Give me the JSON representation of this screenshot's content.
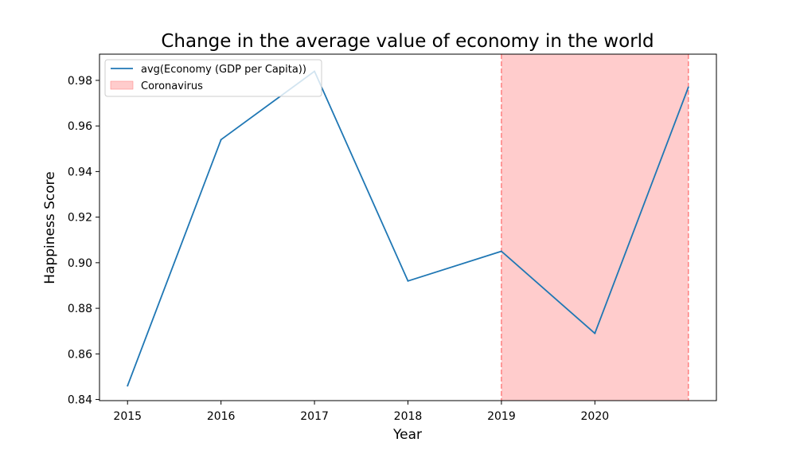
{
  "chart_data": {
    "type": "line",
    "title": "Change in the average value of economy in the world",
    "xlabel": "Year",
    "ylabel": "Happiness Score",
    "x": [
      2015,
      2016,
      2017,
      2018,
      2019,
      2020,
      2021
    ],
    "x_tick_labels": [
      "2015",
      "2016",
      "2017",
      "2018",
      "2019",
      "2020"
    ],
    "y_ticks": [
      0.84,
      0.86,
      0.88,
      0.9,
      0.92,
      0.94,
      0.96,
      0.98
    ],
    "y_tick_labels": [
      "0.84",
      "0.86",
      "0.88",
      "0.90",
      "0.92",
      "0.94",
      "0.96",
      "0.98"
    ],
    "xlim": [
      2014.7,
      2021.3
    ],
    "ylim": [
      0.8395,
      0.9915
    ],
    "grid": false,
    "legend_position": "top-left",
    "series": [
      {
        "name": "avg(Economy (GDP per Capita))",
        "color": "#1f77b4",
        "values": [
          0.846,
          0.954,
          0.984,
          0.892,
          0.905,
          0.869,
          0.977
        ]
      }
    ],
    "shaded_region": {
      "label": "Coronavirus",
      "x_start": 2019,
      "x_end": 2021,
      "fill_color": "#ffcccc",
      "edge_color": "#ff7f7f"
    }
  }
}
